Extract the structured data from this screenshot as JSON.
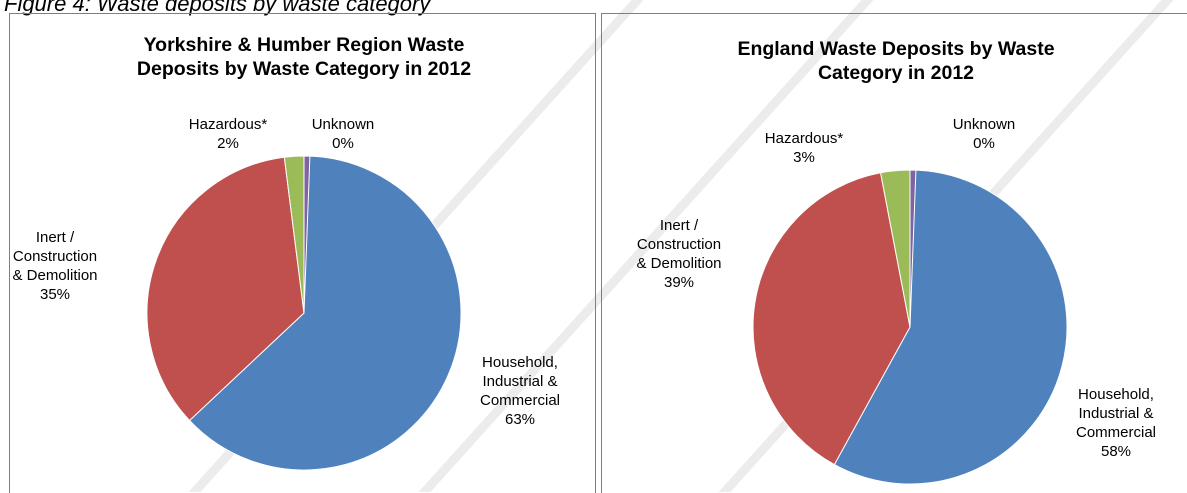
{
  "caption": "Figure 4: Waste deposits by waste category",
  "chart_data": [
    {
      "type": "pie",
      "title": "Yorkshire & Humber Region Waste Deposits by Waste Category in 2012",
      "slices": [
        {
          "label": "Household, Industrial & Commercial",
          "value": 63,
          "display": "63%",
          "color": "#4f81bd"
        },
        {
          "label": "Inert / Construction & Demolition",
          "value": 35,
          "display": "35%",
          "color": "#c0504d"
        },
        {
          "label": "Hazardous*",
          "value": 2,
          "display": "2%",
          "color": "#9bbb59"
        },
        {
          "label": "Unknown",
          "value": 0,
          "display": "0%",
          "color": "#8064a2"
        }
      ]
    },
    {
      "type": "pie",
      "title": "England Waste Deposits by Waste Category in 2012",
      "slices": [
        {
          "label": "Household, Industrial & Commercial",
          "value": 58,
          "display": "58%",
          "color": "#4f81bd"
        },
        {
          "label": "Inert / Construction & Demolition",
          "value": 39,
          "display": "39%",
          "color": "#c0504d"
        },
        {
          "label": "Hazardous*",
          "value": 3,
          "display": "3%",
          "color": "#9bbb59"
        },
        {
          "label": "Unknown",
          "value": 0,
          "display": "0%",
          "color": "#8064a2"
        }
      ]
    }
  ]
}
